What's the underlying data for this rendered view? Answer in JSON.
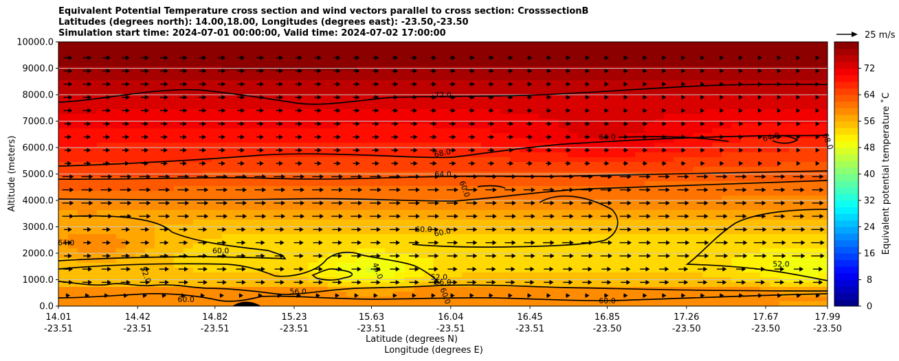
{
  "chart_data": {
    "type": "contour",
    "title_lines": [
      "Equivalent Potential Temperature cross section and wind vectors parallel to cross section: CrosssectionB",
      "Latitudes (degrees north): 14.00,18.00, Longitudes (degrees east): -23.50,-23.50",
      "Simulation start time: 2024-07-01 00:00:00, Valid time: 2024-07-02 17:00:00"
    ],
    "ylabel": "Altitude (meters)",
    "xlabel_lat": "Latitude (degrees N)",
    "xlabel_lon": "Longitude (degrees E)",
    "ylim": [
      0,
      10000
    ],
    "y_ticks": [
      "0.0",
      "1000.0",
      "2000.0",
      "3000.0",
      "4000.0",
      "5000.0",
      "6000.0",
      "7000.0",
      "8000.0",
      "9000.0",
      "10000.0"
    ],
    "x_lat_ticks": [
      "14.01",
      "14.42",
      "14.82",
      "15.23",
      "15.63",
      "16.04",
      "16.45",
      "16.85",
      "17.26",
      "17.67",
      "17.99"
    ],
    "x_lon_ticks": [
      "-23.51",
      "-23.51",
      "-23.51",
      "-23.51",
      "-23.51",
      "-23.51",
      "-23.51",
      "-23.50",
      "-23.50",
      "-23.50",
      "-23.50"
    ],
    "colorbar": {
      "label": "Equivalent potential temperature $^\\circ$C",
      "label_text": "Equivalent potential temperature ˚C",
      "range": [
        0,
        80
      ],
      "ticks": [
        "0",
        "8",
        "16",
        "24",
        "32",
        "40",
        "48",
        "56",
        "64",
        "72"
      ]
    },
    "wind_key": "25 m/s",
    "contour_labels": [
      {
        "text": "72.0",
        "at": [
          16.0,
          7900
        ]
      },
      {
        "text": "68.0",
        "at": [
          16.0,
          5700
        ]
      },
      {
        "text": "64.0",
        "at": [
          16.0,
          4900
        ]
      },
      {
        "text": "60.0",
        "at": [
          16.1,
          4400
        ]
      },
      {
        "text": "60.0",
        "at": [
          15.9,
          2800
        ]
      },
      {
        "text": "60.0",
        "at": [
          16.0,
          2700
        ]
      },
      {
        "text": "60.0",
        "at": [
          14.85,
          2000
        ]
      },
      {
        "text": "64.0",
        "at": [
          14.05,
          2300
        ]
      },
      {
        "text": "52.0",
        "at": [
          14.45,
          1150
        ]
      },
      {
        "text": "48.0",
        "at": [
          15.65,
          1300
        ]
      },
      {
        "text": "52.0",
        "at": [
          15.98,
          1000
        ]
      },
      {
        "text": "56.0",
        "at": [
          16.0,
          800
        ]
      },
      {
        "text": "56.0",
        "at": [
          15.25,
          450
        ]
      },
      {
        "text": "60.0",
        "at": [
          16.0,
          350
        ]
      },
      {
        "text": "60.0",
        "at": [
          14.67,
          150
        ]
      },
      {
        "text": "60.0",
        "at": [
          16.85,
          100
        ]
      },
      {
        "text": "64.0",
        "at": [
          16.85,
          6300
        ]
      },
      {
        "text": "64.0",
        "at": [
          17.7,
          6300
        ]
      },
      {
        "text": "68.0",
        "at": [
          17.98,
          6200
        ]
      },
      {
        "text": "52.0",
        "at": [
          17.75,
          1500
        ]
      }
    ]
  }
}
